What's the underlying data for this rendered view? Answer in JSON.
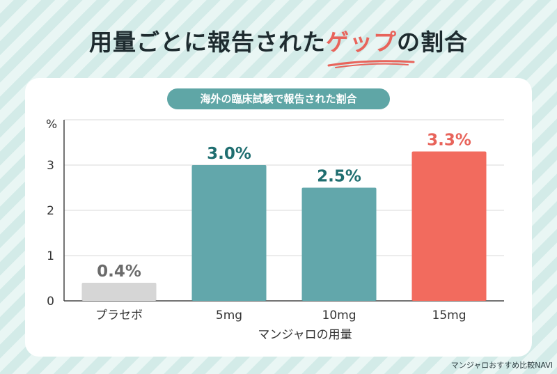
{
  "title": {
    "before": "用量ごとに報告された",
    "highlight": "ゲップ",
    "after": "の割合"
  },
  "subtitle": "海外の臨床試験で報告された割合",
  "credit": "マンジャロおすすめ比較NAVI",
  "colors": {
    "placebo": "#d6d6d6",
    "teal": "#62a7ab",
    "highlight": "#f26b5e",
    "label_dark": "#6b6b6b",
    "label_teal": "#1f6e70",
    "label_red": "#e8645b"
  },
  "chart_data": {
    "type": "bar",
    "categories": [
      "プラセボ",
      "5mg",
      "10mg",
      "15mg"
    ],
    "values": [
      0.4,
      3.0,
      2.5,
      3.3
    ],
    "data_labels": [
      "0.4%",
      "3.0%",
      "2.5%",
      "3.3%"
    ],
    "bar_colors": [
      "#d6d6d6",
      "#62a7ab",
      "#62a7ab",
      "#f26b5e"
    ],
    "label_colors": [
      "#6b6b6b",
      "#1f6e70",
      "#1f6e70",
      "#e8645b"
    ],
    "yunit": "%",
    "yticks": [
      "0",
      "1",
      "2",
      "3"
    ],
    "ylim": [
      0,
      4
    ],
    "xlabel": "マンジャロの用量",
    "grid": true,
    "legend": "none"
  }
}
